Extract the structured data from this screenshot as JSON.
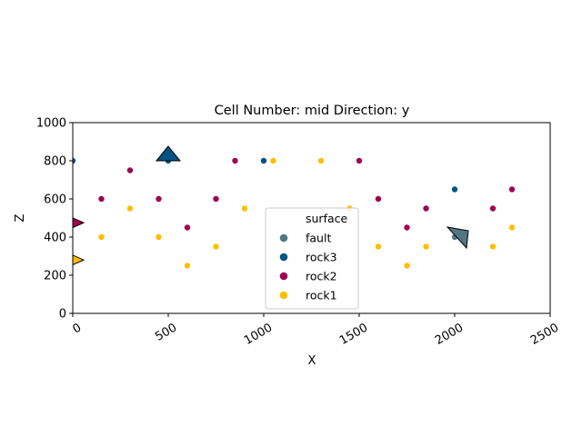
{
  "chart_data": {
    "type": "scatter",
    "title": "Cell Number: mid Direction: y",
    "xlabel": "X",
    "ylabel": "Z",
    "xlim": [
      0,
      2500
    ],
    "ylim": [
      0,
      1000
    ],
    "xticks": [
      "0",
      "500",
      "1000",
      "1500",
      "2000",
      "2500"
    ],
    "yticks": [
      "0",
      "200",
      "400",
      "600",
      "800",
      "1000"
    ],
    "legend": {
      "title": "surface",
      "placement": "lower-center",
      "entries": [
        "fault",
        "rock3",
        "rock2",
        "rock1"
      ]
    },
    "colors": {
      "fault": "#527682",
      "rock3": "#015482",
      "rock2": "#9f0052",
      "rock1": "#ffbe00"
    },
    "series": [
      {
        "name": "fault",
        "points": [
          {
            "x": 2000,
            "y": 400
          }
        ]
      },
      {
        "name": "rock3",
        "points": [
          {
            "x": 0,
            "y": 800
          },
          {
            "x": 500,
            "y": 800
          },
          {
            "x": 1000,
            "y": 800
          },
          {
            "x": 2000,
            "y": 650
          }
        ]
      },
      {
        "name": "rock2",
        "points": [
          {
            "x": 0,
            "y": 475
          },
          {
            "x": 150,
            "y": 600
          },
          {
            "x": 300,
            "y": 750
          },
          {
            "x": 450,
            "y": 600
          },
          {
            "x": 600,
            "y": 450
          },
          {
            "x": 750,
            "y": 600
          },
          {
            "x": 850,
            "y": 800
          },
          {
            "x": 1500,
            "y": 800
          },
          {
            "x": 1600,
            "y": 600
          },
          {
            "x": 1750,
            "y": 450
          },
          {
            "x": 1850,
            "y": 550
          },
          {
            "x": 2200,
            "y": 550
          },
          {
            "x": 2300,
            "y": 650
          }
        ]
      },
      {
        "name": "rock1",
        "points": [
          {
            "x": 0,
            "y": 280
          },
          {
            "x": 150,
            "y": 400
          },
          {
            "x": 300,
            "y": 550
          },
          {
            "x": 450,
            "y": 400
          },
          {
            "x": 600,
            "y": 250
          },
          {
            "x": 750,
            "y": 350
          },
          {
            "x": 900,
            "y": 550
          },
          {
            "x": 1050,
            "y": 800
          },
          {
            "x": 1300,
            "y": 800
          },
          {
            "x": 1450,
            "y": 550
          },
          {
            "x": 1600,
            "y": 350
          },
          {
            "x": 1750,
            "y": 250
          },
          {
            "x": 1850,
            "y": 350
          },
          {
            "x": 2200,
            "y": 350
          },
          {
            "x": 2300,
            "y": 450
          }
        ]
      }
    ],
    "orientations": [
      {
        "surface": "rock3",
        "x": 500,
        "y": 800,
        "direction": "up"
      },
      {
        "surface": "fault",
        "x": 2000,
        "y": 400,
        "direction": "down-tilted"
      },
      {
        "surface": "rock2",
        "x": 0,
        "y": 475,
        "direction": "right"
      },
      {
        "surface": "rock1",
        "x": 0,
        "y": 280,
        "direction": "right"
      }
    ]
  }
}
